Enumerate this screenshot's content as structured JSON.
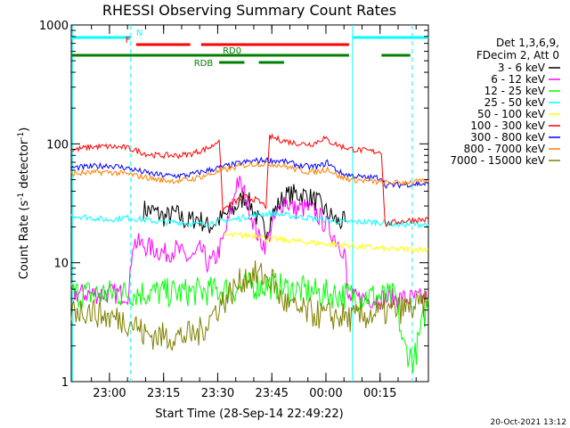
{
  "chart_data": {
    "type": "line",
    "title": "RHESSI Observing Summary Count Rates",
    "xlabel": "Start Time (28-Sep-14 22:49:22)",
    "ylabel_main": "Count Rate (s",
    "ylabel_sup": "-1",
    "ylabel_mid": " detector",
    "ylabel_sup2": "-1",
    "ylabel_end": ")",
    "y_scale": "log",
    "ylim": [
      1,
      1000
    ],
    "xlim_minutes": [
      0,
      99
    ],
    "x_ticks": [
      {
        "label": "23:00",
        "minute": 10.6
      },
      {
        "label": "23:15",
        "minute": 25.6
      },
      {
        "label": "23:30",
        "minute": 40.6
      },
      {
        "label": "23:45",
        "minute": 55.6
      },
      {
        "label": "00:00",
        "minute": 70.6
      },
      {
        "label": "00:15",
        "minute": 85.6
      }
    ],
    "y_ticks": [
      {
        "label": "1000",
        "value": 1000
      },
      {
        "label": "100",
        "value": 100
      },
      {
        "label": "10",
        "value": 10
      },
      {
        "label": "1",
        "value": 1
      }
    ],
    "legend_header": [
      "Det 1,3,6,9,",
      "FDecim 2, Att 0"
    ],
    "series": [
      {
        "name": "3 - 6 keV",
        "color": "#000000",
        "points": [
          [
            20,
            28
          ],
          [
            23,
            27
          ],
          [
            26,
            24
          ],
          [
            29,
            26
          ],
          [
            32,
            22
          ],
          [
            35,
            24
          ],
          [
            38,
            20
          ],
          [
            40,
            22
          ],
          [
            42,
            24
          ],
          [
            45,
            28
          ],
          [
            48,
            36
          ],
          [
            50,
            30
          ],
          [
            52,
            22
          ],
          [
            54,
            19
          ],
          [
            56,
            26
          ],
          [
            59,
            36
          ],
          [
            62,
            38
          ],
          [
            65,
            37
          ],
          [
            68,
            33
          ],
          [
            71,
            26
          ],
          [
            74,
            22
          ],
          [
            76,
            22
          ]
        ]
      },
      {
        "name": "6 - 12 keV",
        "color": "#ff00ff",
        "points": [
          [
            0,
            5.5
          ],
          [
            16,
            5.5
          ],
          [
            17,
            15
          ],
          [
            20,
            14
          ],
          [
            23,
            13
          ],
          [
            26,
            12
          ],
          [
            29,
            13
          ],
          [
            32,
            11
          ],
          [
            34,
            11
          ],
          [
            36,
            13
          ],
          [
            38,
            9.5
          ],
          [
            40,
            11
          ],
          [
            42,
            15
          ],
          [
            44,
            25
          ],
          [
            46,
            50
          ],
          [
            48,
            38
          ],
          [
            50,
            25
          ],
          [
            52,
            16
          ],
          [
            54,
            14
          ],
          [
            56,
            22
          ],
          [
            59,
            34
          ],
          [
            62,
            28
          ],
          [
            65,
            29
          ],
          [
            68,
            26
          ],
          [
            71,
            20
          ],
          [
            74,
            15
          ],
          [
            76,
            12
          ],
          [
            76.5,
            5
          ],
          [
            99,
            5
          ]
        ]
      },
      {
        "name": "12 - 25 keV",
        "color": "#00ff00",
        "points": [
          [
            0,
            5.5
          ],
          [
            10,
            5.5
          ],
          [
            20,
            5.6
          ],
          [
            30,
            5.6
          ],
          [
            40,
            5.8
          ],
          [
            45,
            6.0
          ],
          [
            50,
            6.4
          ],
          [
            55,
            6.5
          ],
          [
            60,
            6.0
          ],
          [
            65,
            5.8
          ],
          [
            70,
            5.5
          ],
          [
            78,
            5.3
          ],
          [
            85,
            5.2
          ],
          [
            90,
            5.1
          ],
          [
            92,
            2
          ],
          [
            95,
            1.5
          ],
          [
            99,
            5
          ]
        ]
      },
      {
        "name": "25 - 50 keV",
        "color": "#00ffff",
        "points": [
          [
            0,
            25
          ],
          [
            5,
            24
          ],
          [
            10,
            23
          ],
          [
            15,
            24
          ],
          [
            20,
            23
          ],
          [
            25,
            22
          ],
          [
            30,
            22
          ],
          [
            35,
            21
          ],
          [
            40,
            22
          ],
          [
            45,
            23
          ],
          [
            50,
            25
          ],
          [
            55,
            26
          ],
          [
            60,
            25
          ],
          [
            65,
            24
          ],
          [
            70,
            23
          ],
          [
            75,
            22
          ],
          [
            80,
            22
          ],
          [
            85,
            22
          ],
          [
            90,
            21
          ],
          [
            95,
            21
          ],
          [
            99,
            21
          ]
        ]
      },
      {
        "name": "50 - 100 keV",
        "color": "#ffff00",
        "points": [
          [
            42,
            17
          ],
          [
            48,
            17
          ],
          [
            52,
            17
          ],
          [
            54,
            16
          ],
          [
            88,
            13
          ],
          [
            95,
            13
          ],
          [
            99,
            13
          ]
        ]
      },
      {
        "name": "100 - 300 keV",
        "color": "#ff0000",
        "points": [
          [
            0,
            88
          ],
          [
            5,
            94
          ],
          [
            10,
            95
          ],
          [
            15,
            93
          ],
          [
            18,
            88
          ],
          [
            21,
            82
          ],
          [
            24,
            80
          ],
          [
            27,
            80
          ],
          [
            30,
            80
          ],
          [
            33,
            82
          ],
          [
            36,
            88
          ],
          [
            39,
            95
          ],
          [
            41,
            110
          ],
          [
            42,
            28
          ],
          [
            45,
            32
          ],
          [
            48,
            36
          ],
          [
            51,
            34
          ],
          [
            54,
            30
          ],
          [
            55,
            115
          ],
          [
            58,
            108
          ],
          [
            61,
            103
          ],
          [
            64,
            100
          ],
          [
            67,
            100
          ],
          [
            70,
            112
          ],
          [
            72,
            103
          ],
          [
            75,
            95
          ],
          [
            78,
            90
          ],
          [
            81,
            88
          ],
          [
            84,
            86
          ],
          [
            86,
            86
          ],
          [
            87,
            21
          ],
          [
            90,
            22
          ],
          [
            95,
            23
          ],
          [
            99,
            23
          ]
        ]
      },
      {
        "name": "300 - 800 keV",
        "color": "#0000ff",
        "points": [
          [
            0,
            63
          ],
          [
            5,
            64
          ],
          [
            10,
            66
          ],
          [
            15,
            63
          ],
          [
            18,
            60
          ],
          [
            21,
            57
          ],
          [
            24,
            55
          ],
          [
            27,
            54
          ],
          [
            30,
            54
          ],
          [
            33,
            55
          ],
          [
            36,
            58
          ],
          [
            39,
            61
          ],
          [
            42,
            64
          ],
          [
            45,
            67
          ],
          [
            48,
            70
          ],
          [
            51,
            72
          ],
          [
            54,
            73
          ],
          [
            57,
            72
          ],
          [
            60,
            70
          ],
          [
            63,
            66
          ],
          [
            66,
            64
          ],
          [
            69,
            65
          ],
          [
            71,
            70
          ],
          [
            73,
            62
          ],
          [
            75,
            56
          ],
          [
            78,
            54
          ],
          [
            81,
            52
          ],
          [
            84,
            52
          ],
          [
            86,
            52
          ],
          [
            87,
            45
          ],
          [
            90,
            45
          ],
          [
            95,
            46
          ],
          [
            99,
            46
          ]
        ]
      },
      {
        "name": "800 - 7000 keV",
        "color": "#ff8000",
        "points": [
          [
            0,
            56
          ],
          [
            5,
            57
          ],
          [
            10,
            58
          ],
          [
            15,
            56
          ],
          [
            18,
            54
          ],
          [
            21,
            52
          ],
          [
            24,
            50
          ],
          [
            27,
            49
          ],
          [
            30,
            49
          ],
          [
            33,
            50
          ],
          [
            36,
            53
          ],
          [
            39,
            56
          ],
          [
            42,
            60
          ],
          [
            45,
            63
          ],
          [
            48,
            66
          ],
          [
            51,
            68
          ],
          [
            54,
            68
          ],
          [
            57,
            67
          ],
          [
            60,
            64
          ],
          [
            63,
            60
          ],
          [
            66,
            58
          ],
          [
            69,
            59
          ],
          [
            71,
            62
          ],
          [
            73,
            56
          ],
          [
            75,
            52
          ],
          [
            78,
            50
          ],
          [
            81,
            49
          ],
          [
            84,
            48
          ],
          [
            87,
            47
          ],
          [
            90,
            47
          ],
          [
            95,
            48
          ],
          [
            99,
            48
          ]
        ]
      },
      {
        "name": "7000 - 15000 keV",
        "color": "#808000",
        "points": [
          [
            0,
            4.0
          ],
          [
            5,
            4.0
          ],
          [
            10,
            3.5
          ],
          [
            15,
            3.3
          ],
          [
            18,
            3.0
          ],
          [
            20,
            2.5
          ],
          [
            25,
            2.4
          ],
          [
            30,
            2.4
          ],
          [
            35,
            2.5
          ],
          [
            38,
            3.2
          ],
          [
            40,
            4.0
          ],
          [
            44,
            5.5
          ],
          [
            48,
            7.5
          ],
          [
            52,
            8.0
          ],
          [
            56,
            7.0
          ],
          [
            58,
            5.0
          ],
          [
            62,
            4.0
          ],
          [
            66,
            3.8
          ],
          [
            70,
            3.6
          ],
          [
            75,
            3.5
          ],
          [
            78,
            3.4
          ],
          [
            82,
            3.6
          ],
          [
            86,
            3.8
          ],
          [
            90,
            4.0
          ],
          [
            95,
            4.2
          ],
          [
            99,
            4.5
          ]
        ]
      }
    ],
    "flag_bars": [
      {
        "label": "N",
        "color": "#00ffff",
        "y_frac": 0.035,
        "segments": [
          [
            0,
            16.5
          ],
          [
            78,
            99
          ]
        ]
      },
      {
        "label": "F",
        "color": "#ff0000",
        "y_frac": 0.055,
        "segments": [
          [
            18,
            33
          ],
          [
            36,
            77
          ]
        ]
      },
      {
        "label": "RD0",
        "color": "#008000",
        "y_frac": 0.085,
        "segments": [
          [
            0,
            77
          ],
          [
            86,
            94
          ]
        ]
      },
      {
        "label": "RDB",
        "color": "#008000",
        "y_frac": 0.105,
        "segments": [
          [
            41,
            48
          ],
          [
            52,
            59
          ]
        ]
      }
    ],
    "vlines": [
      {
        "minute": 0.3,
        "color": "#00ffff",
        "dashed": false
      },
      {
        "minute": 16.5,
        "color": "#00ffff",
        "dashed": true
      },
      {
        "minute": 78.0,
        "color": "#00ffff",
        "dashed": false
      },
      {
        "minute": 94.5,
        "color": "#00ffff",
        "dashed": true
      }
    ]
  },
  "footer_timestamp": "20-Oct-2021 13:12"
}
